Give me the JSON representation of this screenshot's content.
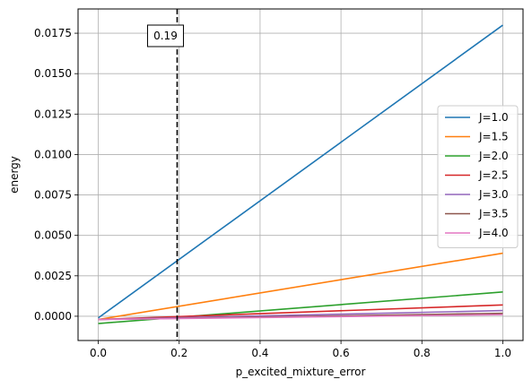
{
  "chart_data": {
    "type": "line",
    "title": "",
    "xlabel": "p_excited_mixture_error",
    "ylabel": "energy",
    "xlim": [
      -0.05,
      1.05
    ],
    "ylim": [
      -0.0015,
      0.019
    ],
    "xticks": [
      0.0,
      0.2,
      0.4,
      0.6,
      0.8,
      1.0
    ],
    "xtick_labels": [
      "0.0",
      "0.2",
      "0.4",
      "0.6",
      "0.8",
      "1.0"
    ],
    "yticks": [
      0.0,
      0.0025,
      0.005,
      0.0075,
      0.01,
      0.0125,
      0.015,
      0.0175
    ],
    "ytick_labels": [
      "0.0000",
      "0.0025",
      "0.0050",
      "0.0075",
      "0.0100",
      "0.0125",
      "0.0150",
      "0.0175"
    ],
    "grid": true,
    "legend_position": "center-right",
    "series": [
      {
        "name": "J=1.0",
        "color": "#1f77b4",
        "x": [
          0.0,
          1.0
        ],
        "y": [
          -0.0001,
          0.018
        ]
      },
      {
        "name": "J=1.5",
        "color": "#ff7f0e",
        "x": [
          0.0,
          1.0
        ],
        "y": [
          -0.0002,
          0.0039
        ]
      },
      {
        "name": "J=2.0",
        "color": "#2ca02c",
        "x": [
          0.0,
          1.0
        ],
        "y": [
          -0.00045,
          0.0015
        ]
      },
      {
        "name": "J=2.5",
        "color": "#d62728",
        "x": [
          0.0,
          1.0
        ],
        "y": [
          -0.0002,
          0.0007
        ]
      },
      {
        "name": "J=3.0",
        "color": "#9467bd",
        "x": [
          0.0,
          1.0
        ],
        "y": [
          -0.0002,
          0.00035
        ]
      },
      {
        "name": "J=3.5",
        "color": "#8c564b",
        "x": [
          0.0,
          1.0
        ],
        "y": [
          -0.0002,
          0.00018
        ]
      },
      {
        "name": "J=4.0",
        "color": "#e377c2",
        "x": [
          0.0,
          1.0
        ],
        "y": [
          -0.0002,
          0.0001
        ]
      }
    ],
    "vline": {
      "x": 0.195,
      "label": "0.19",
      "color": "#000000",
      "style": "dashed"
    }
  }
}
